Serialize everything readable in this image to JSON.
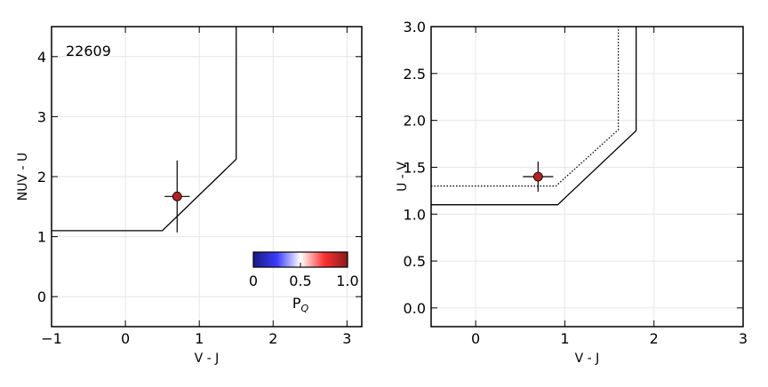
{
  "chart_data": [
    {
      "type": "scatter",
      "annotation": "22609",
      "xlabel": "V - J",
      "ylabel": "NUV - U",
      "xlim": [
        -1,
        3.2
      ],
      "ylim": [
        -0.5,
        4.5
      ],
      "xticks": [
        {
          "value": -1,
          "label": "−1"
        },
        0,
        1,
        2,
        3
      ],
      "yticks": [
        0,
        1,
        2,
        3,
        4
      ],
      "grid": true,
      "series": [
        {
          "x": [
            0.7
          ],
          "values": [
            1.67
          ],
          "xerr": [
            0.17
          ],
          "yerr": [
            0.6
          ],
          "color": "#b22222"
        }
      ],
      "lines": [
        {
          "x": [
            -1,
            0.5,
            1.5,
            1.5
          ],
          "values": [
            1.1,
            1.1,
            2.29,
            4.5
          ],
          "color": "#000000",
          "style": "solid"
        }
      ],
      "colorbar": {
        "label": "P",
        "label_sub": "Q",
        "lim": [
          0,
          1
        ],
        "ticks": [
          0,
          0.5,
          {
            "value": 1,
            "label": "1.0"
          }
        ],
        "colors": [
          "#1a1a80",
          "#3b3bff",
          "#ffffff",
          "#ff3333",
          "#8b1a1a"
        ]
      }
    },
    {
      "type": "scatter",
      "xlabel": "V - J",
      "ylabel": "U - V",
      "xlim": [
        -0.5,
        3.0
      ],
      "ylim": [
        -0.2,
        3.0
      ],
      "xticks": [
        0,
        1,
        2,
        3
      ],
      "yticks": [
        {
          "value": 0,
          "label": "0.0"
        },
        0.5,
        {
          "value": 1,
          "label": "1.0"
        },
        1.5,
        {
          "value": 2,
          "label": "2.0"
        },
        2.5,
        {
          "value": 3,
          "label": "3.0"
        }
      ],
      "grid": true,
      "series": [
        {
          "x": [
            0.7
          ],
          "values": [
            1.4
          ],
          "xerr": [
            0.17
          ],
          "yerr": [
            0.16
          ],
          "color": "#b22222"
        }
      ],
      "lines": [
        {
          "x": [
            -0.5,
            0.92,
            1.8,
            1.8
          ],
          "values": [
            1.1,
            1.1,
            1.89,
            3.0
          ],
          "color": "#000000",
          "style": "solid"
        },
        {
          "x": [
            -0.5,
            0.9,
            1.6,
            1.6
          ],
          "values": [
            1.3,
            1.3,
            1.9,
            3.0
          ],
          "color": "#000000",
          "style": "dotted"
        }
      ]
    }
  ]
}
